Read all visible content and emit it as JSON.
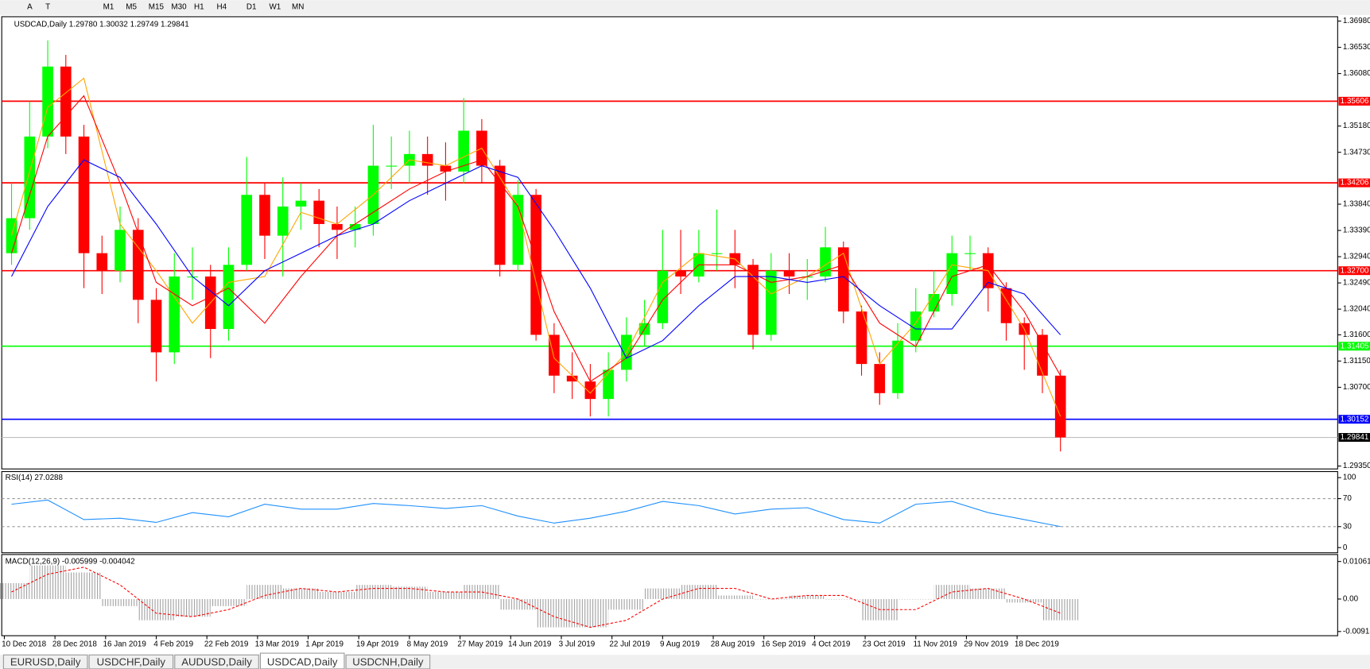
{
  "toolbar": {
    "timeframes": [
      "M1",
      "M5",
      "M15",
      "M30",
      "H1",
      "H4",
      "D1",
      "W1",
      "MN"
    ]
  },
  "tabs": [
    "EURUSD,Daily",
    "USDCHF,Daily",
    "AUDUSD,Daily",
    "USDCAD,Daily",
    "USDCNH,Daily"
  ],
  "active_tab": 3,
  "chart_data": [
    {
      "type": "candlestick",
      "header": "USDCAD,Daily  1.29780 1.30032 1.29749 1.29841",
      "up_color": "#00ff00",
      "down_color": "#ff0000",
      "x": [
        2,
        7,
        12,
        17,
        22,
        27,
        32,
        37,
        42,
        47,
        52,
        57,
        62,
        67,
        72,
        77,
        82,
        87,
        92,
        97,
        102,
        107,
        112,
        117,
        122,
        127,
        132,
        137,
        142,
        147,
        152,
        157,
        162,
        167,
        172,
        177,
        182,
        187,
        192,
        197,
        202,
        207,
        212,
        217,
        222,
        227,
        232,
        237,
        242,
        247,
        252,
        257,
        262,
        267,
        272,
        277,
        282,
        287,
        292
      ],
      "open": [
        1.33,
        1.336,
        1.35,
        1.362,
        1.35,
        1.33,
        1.327,
        1.334,
        1.322,
        1.313,
        1.326,
        1.326,
        1.317,
        1.328,
        1.34,
        1.333,
        1.338,
        1.339,
        1.335,
        1.334,
        1.335,
        1.345,
        1.345,
        1.347,
        1.345,
        1.344,
        1.351,
        1.345,
        1.328,
        1.34,
        1.316,
        1.309,
        1.308,
        1.305,
        1.31,
        1.316,
        1.318,
        1.327,
        1.326,
        1.33,
        1.33,
        1.328,
        1.316,
        1.327,
        1.326,
        1.326,
        1.331,
        1.32,
        1.311,
        1.306,
        1.315,
        1.32,
        1.323,
        1.33,
        1.33,
        1.324,
        1.318,
        1.316,
        1.309
      ],
      "high": [
        1.342,
        1.356,
        1.3665,
        1.364,
        1.352,
        1.333,
        1.338,
        1.336,
        1.324,
        1.33,
        1.331,
        1.328,
        1.331,
        1.3465,
        1.342,
        1.343,
        1.342,
        1.341,
        1.338,
        1.338,
        1.352,
        1.35,
        1.351,
        1.35,
        1.349,
        1.3566,
        1.353,
        1.346,
        1.3425,
        1.341,
        1.318,
        1.313,
        1.311,
        1.313,
        1.319,
        1.322,
        1.334,
        1.334,
        1.334,
        1.3375,
        1.334,
        1.329,
        1.33,
        1.33,
        1.329,
        1.3345,
        1.332,
        1.321,
        1.313,
        1.318,
        1.324,
        1.327,
        1.333,
        1.333,
        1.331,
        1.325,
        1.319,
        1.317,
        1.31
      ],
      "low": [
        1.328,
        1.334,
        1.348,
        1.347,
        1.324,
        1.323,
        1.325,
        1.318,
        1.308,
        1.311,
        1.322,
        1.312,
        1.315,
        1.327,
        1.329,
        1.326,
        1.334,
        1.331,
        1.329,
        1.331,
        1.333,
        1.341,
        1.342,
        1.34,
        1.339,
        1.342,
        1.342,
        1.326,
        1.327,
        1.315,
        1.306,
        1.305,
        1.302,
        1.302,
        1.308,
        1.314,
        1.317,
        1.323,
        1.325,
        1.327,
        1.324,
        1.3135,
        1.315,
        1.323,
        1.322,
        1.325,
        1.318,
        1.309,
        1.304,
        1.305,
        1.313,
        1.319,
        1.321,
        1.327,
        1.32,
        1.315,
        1.31,
        1.306,
        1.296
      ],
      "close": [
        1.336,
        1.35,
        1.362,
        1.35,
        1.33,
        1.327,
        1.334,
        1.322,
        1.313,
        1.326,
        1.326,
        1.317,
        1.328,
        1.34,
        1.333,
        1.338,
        1.339,
        1.335,
        1.334,
        1.335,
        1.345,
        1.345,
        1.347,
        1.345,
        1.344,
        1.351,
        1.345,
        1.328,
        1.34,
        1.316,
        1.309,
        1.308,
        1.305,
        1.31,
        1.316,
        1.318,
        1.327,
        1.326,
        1.33,
        1.33,
        1.328,
        1.316,
        1.327,
        1.326,
        1.326,
        1.331,
        1.32,
        1.311,
        1.306,
        1.315,
        1.32,
        1.323,
        1.33,
        1.33,
        1.324,
        1.318,
        1.316,
        1.309,
        1.29841
      ],
      "series": [
        {
          "color": "#ffa500",
          "x": [
            2,
            12,
            22,
            32,
            42,
            52,
            62,
            72,
            82,
            92,
            102,
            112,
            122,
            132,
            142,
            152,
            162,
            172,
            182,
            192,
            202,
            212,
            222,
            232,
            242,
            252,
            262,
            272,
            282,
            292
          ],
          "values": [
            1.333,
            1.355,
            1.36,
            1.335,
            1.327,
            1.318,
            1.325,
            1.326,
            1.337,
            1.335,
            1.34,
            1.346,
            1.345,
            1.348,
            1.338,
            1.312,
            1.306,
            1.313,
            1.325,
            1.33,
            1.329,
            1.323,
            1.326,
            1.33,
            1.311,
            1.318,
            1.328,
            1.327,
            1.317,
            1.302
          ]
        },
        {
          "color": "#ff0000",
          "x": [
            2,
            12,
            22,
            32,
            42,
            52,
            62,
            72,
            82,
            92,
            102,
            112,
            122,
            132,
            142,
            152,
            162,
            172,
            182,
            192,
            202,
            212,
            222,
            232,
            242,
            252,
            262,
            272,
            282,
            292
          ],
          "values": [
            1.33,
            1.35,
            1.357,
            1.342,
            1.325,
            1.321,
            1.324,
            1.318,
            1.326,
            1.333,
            1.337,
            1.341,
            1.344,
            1.346,
            1.338,
            1.32,
            1.308,
            1.312,
            1.322,
            1.328,
            1.328,
            1.325,
            1.326,
            1.328,
            1.318,
            1.314,
            1.326,
            1.328,
            1.32,
            1.309
          ]
        },
        {
          "color": "#0000ff",
          "x": [
            2,
            12,
            22,
            32,
            42,
            52,
            62,
            72,
            82,
            92,
            102,
            112,
            122,
            132,
            142,
            152,
            162,
            172,
            182,
            192,
            202,
            212,
            222,
            232,
            242,
            252,
            262,
            272,
            282,
            292
          ],
          "values": [
            1.326,
            1.338,
            1.346,
            1.343,
            1.335,
            1.326,
            1.321,
            1.327,
            1.33,
            1.333,
            1.335,
            1.339,
            1.342,
            1.345,
            1.343,
            1.334,
            1.324,
            1.312,
            1.315,
            1.321,
            1.326,
            1.326,
            1.325,
            1.326,
            1.321,
            1.317,
            1.317,
            1.325,
            1.323,
            1.316
          ]
        }
      ],
      "levels": [
        {
          "price": 1.35606,
          "label": "1.35606",
          "color": "#ff0000",
          "box_color": "#ff0000"
        },
        {
          "price": 1.34206,
          "label": "1.34206",
          "color": "#ff0000",
          "box_color": "#ff0000"
        },
        {
          "price": 1.327,
          "label": "1.32700",
          "color": "#ff0000",
          "box_color": "#ff0000"
        },
        {
          "price": 1.31405,
          "label": "1.31405",
          "color": "#00ff00",
          "box_color": "#00ff00"
        },
        {
          "price": 1.30152,
          "label": "1.30152",
          "color": "#0000ff",
          "box_color": "#0000ff"
        },
        {
          "price": 1.29841,
          "label": "1.29841",
          "color": "#c0c0c0",
          "box_color": "#000000"
        }
      ],
      "xlim": [
        -1.2,
        368.4
      ],
      "xticks": [
        {
          "value": 0,
          "label": "10 Dec 2018"
        },
        {
          "value": 14,
          "label": "28 Dec 2018"
        },
        {
          "value": 28,
          "label": "16 Jan 2019"
        },
        {
          "value": 42,
          "label": "4 Feb 2019"
        },
        {
          "value": 56,
          "label": "22 Feb 2019"
        },
        {
          "value": 70,
          "label": "13 Mar 2019"
        },
        {
          "value": 84,
          "label": "1 Apr 2019"
        },
        {
          "value": 98,
          "label": "19 Apr 2019"
        },
        {
          "value": 112,
          "label": "8 May 2019"
        },
        {
          "value": 126,
          "label": "27 May 2019"
        },
        {
          "value": 140,
          "label": "14 Jun 2019"
        },
        {
          "value": 154,
          "label": "3 Jul 2019"
        },
        {
          "value": 168,
          "label": "22 Jul 2019"
        },
        {
          "value": 182,
          "label": "9 Aug 2019"
        },
        {
          "value": 196,
          "label": "28 Aug 2019"
        },
        {
          "value": 210,
          "label": "16 Sep 2019"
        },
        {
          "value": 224,
          "label": "4 Oct 2019"
        },
        {
          "value": 238,
          "label": "23 Oct 2019"
        },
        {
          "value": 252,
          "label": "11 Nov 2019"
        },
        {
          "value": 266,
          "label": "29 Nov 2019"
        },
        {
          "value": 280,
          "label": "18 Dec 2019"
        }
      ],
      "ylim": [
        1.293,
        1.3704
      ],
      "yticks": [
        {
          "value": 1.3698,
          "label": "1.36980"
        },
        {
          "value": 1.3653,
          "label": "1.36530"
        },
        {
          "value": 1.3608,
          "label": "1.36080"
        },
        {
          "value": 1.3518,
          "label": "1.35180"
        },
        {
          "value": 1.3473,
          "label": "1.34730"
        },
        {
          "value": 1.3384,
          "label": "1.33840"
        },
        {
          "value": 1.3339,
          "label": "1.33390"
        },
        {
          "value": 1.3294,
          "label": "1.32940"
        },
        {
          "value": 1.3249,
          "label": "1.32490"
        },
        {
          "value": 1.3204,
          "label": "1.32040"
        },
        {
          "value": 1.316,
          "label": "1.31600"
        },
        {
          "value": 1.3115,
          "label": "1.31150"
        },
        {
          "value": 1.307,
          "label": "1.30700"
        },
        {
          "value": 1.2935,
          "label": "1.29350"
        }
      ]
    },
    {
      "type": "line",
      "header": "RSI(14) 27.0288",
      "color": "#1e90ff",
      "x": [
        2,
        12,
        22,
        32,
        42,
        52,
        62,
        72,
        82,
        92,
        102,
        112,
        122,
        132,
        142,
        152,
        162,
        172,
        182,
        192,
        202,
        212,
        222,
        232,
        242,
        252,
        262,
        272,
        282,
        292
      ],
      "values": [
        62,
        68,
        40,
        42,
        36,
        50,
        44,
        62,
        55,
        55,
        63,
        60,
        56,
        60,
        45,
        35,
        42,
        52,
        66,
        60,
        48,
        55,
        57,
        40,
        35,
        62,
        66,
        50,
        40,
        30
      ],
      "dashed_levels": [
        30,
        70
      ],
      "xlim": [
        -1.2,
        368.4
      ],
      "ylim": [
        -7.4,
        107.4
      ],
      "yticks": [
        0,
        30,
        70,
        100
      ]
    },
    {
      "type": "macd",
      "header": "MACD(12,26,9) -0.005999 -0.004042",
      "x": [
        2,
        12,
        22,
        32,
        42,
        52,
        62,
        72,
        82,
        92,
        102,
        112,
        122,
        132,
        142,
        152,
        162,
        172,
        182,
        192,
        202,
        212,
        222,
        232,
        242,
        252,
        262,
        272,
        282,
        292
      ],
      "series": [
        {
          "color": "#a0a0a0",
          "values": [
            0.0045,
            0.0095,
            0.0075,
            -0.002,
            -0.006,
            -0.005,
            -0.002,
            0.004,
            0.003,
            0.002,
            0.004,
            0.0035,
            0.002,
            0.004,
            -0.003,
            -0.008,
            -0.008,
            -0.003,
            0.003,
            0.004,
            0.001,
            0.0,
            0.001,
            0.0,
            -0.006,
            0.0,
            0.004,
            0.003,
            -0.001,
            -0.006
          ]
        },
        {
          "color": "#ff0000",
          "values": [
            0.002,
            0.007,
            0.009,
            0.004,
            -0.004,
            -0.005,
            -0.003,
            0.001,
            0.003,
            0.002,
            0.003,
            0.003,
            0.002,
            0.002,
            0.0,
            -0.005,
            -0.008,
            -0.006,
            0.0,
            0.003,
            0.003,
            0.0,
            0.001,
            0.001,
            -0.003,
            -0.003,
            0.002,
            0.003,
            0.0,
            -0.004
          ]
        }
      ],
      "xlim": [
        -1.2,
        368.4
      ],
      "ylim": [
        -0.01037,
        0.01234
      ],
      "yticks": [
        0.010615,
        {
          "value": 0,
          "label": "0.00"
        },
        -0.00918
      ]
    }
  ]
}
